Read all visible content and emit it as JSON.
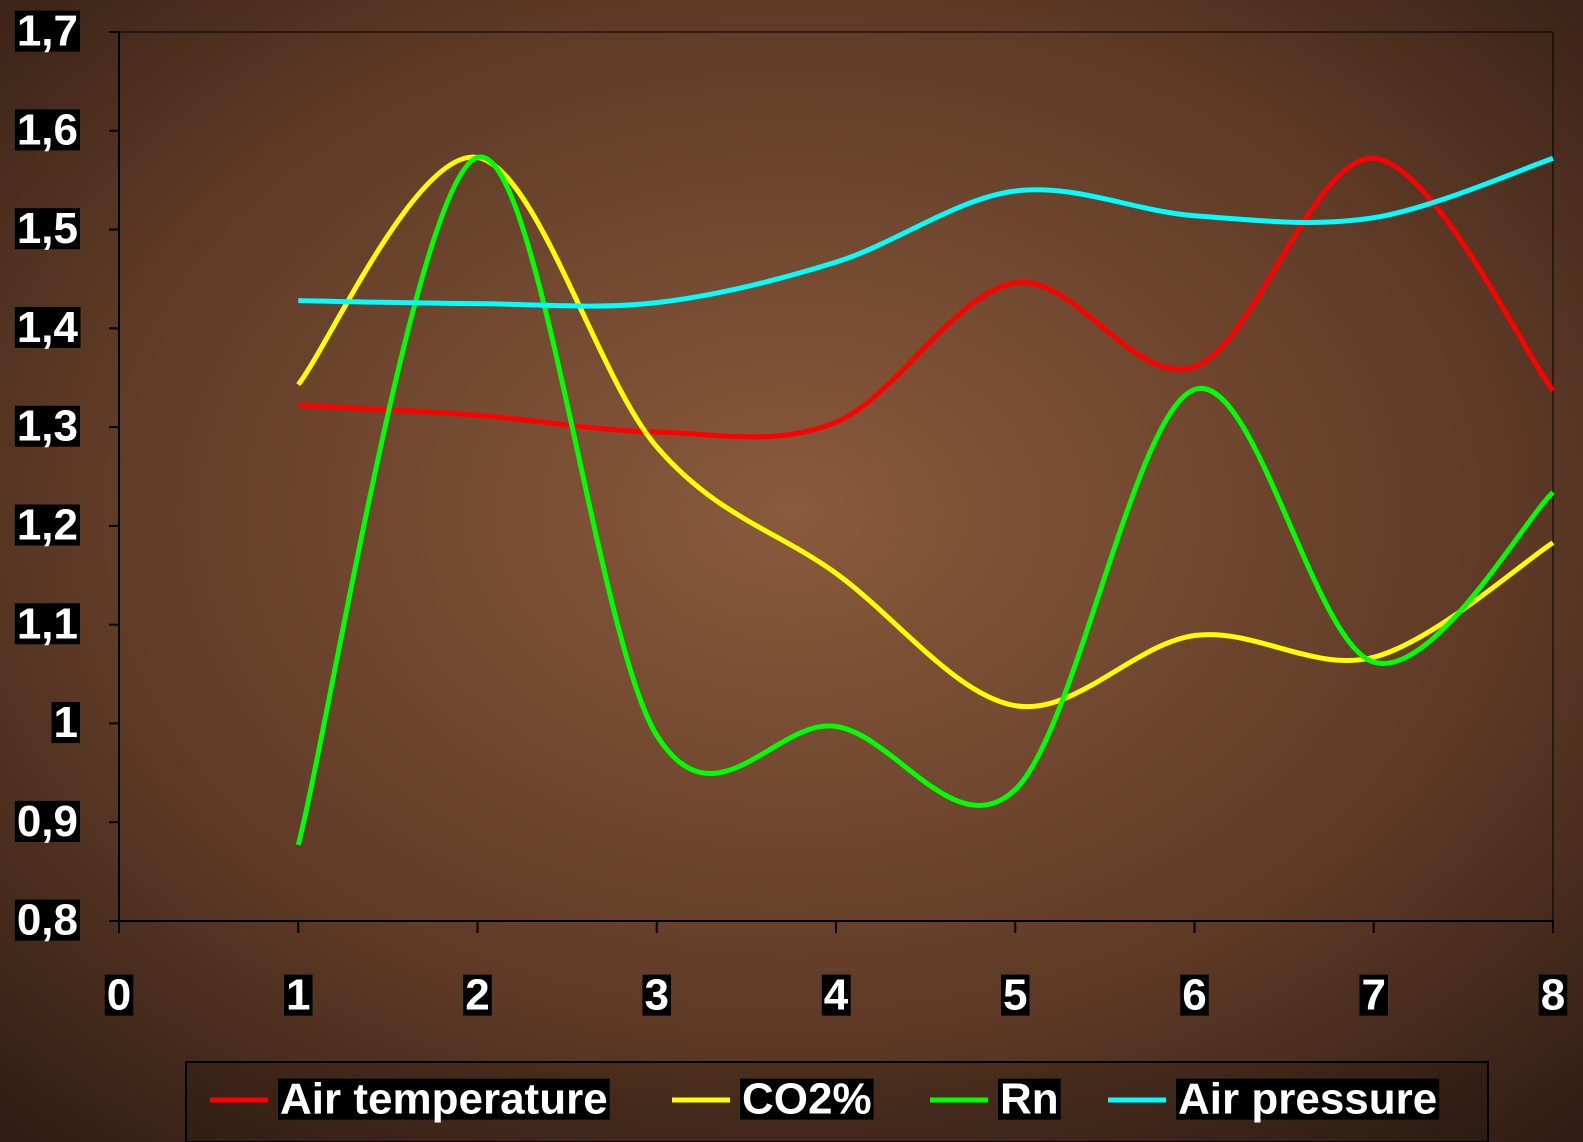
{
  "chart_data": {
    "type": "line",
    "x": [
      1,
      2,
      3,
      4,
      5,
      6,
      7,
      8
    ],
    "series": [
      {
        "name": "Air temperature",
        "color": "#ff0000",
        "values": [
          1.322,
          1.312,
          1.295,
          1.305,
          1.446,
          1.361,
          1.572,
          1.337
        ]
      },
      {
        "name": "CO2%",
        "color": "#ffff00",
        "values": [
          1.343,
          1.573,
          1.28,
          1.152,
          1.018,
          1.089,
          1.067,
          1.183
        ]
      },
      {
        "name": "Rn",
        "color": "#00ff00",
        "values": [
          0.877,
          1.573,
          0.988,
          0.997,
          0.933,
          1.338,
          1.062,
          1.234
        ]
      },
      {
        "name": "Air pressure",
        "color": "#00ffff",
        "values": [
          1.428,
          1.425,
          1.426,
          1.467,
          1.539,
          1.514,
          1.512,
          1.572
        ]
      }
    ],
    "xlim": [
      0,
      8
    ],
    "xticks": [
      0,
      1,
      2,
      3,
      4,
      5,
      6,
      7,
      8
    ],
    "ylim": [
      0.8,
      1.7
    ],
    "yticks": [
      {
        "value": 0.8,
        "label": "0,8"
      },
      {
        "value": 0.9,
        "label": "0,9"
      },
      1,
      {
        "value": 1.1,
        "label": "1,1"
      },
      {
        "value": 1.2,
        "label": "1,2"
      },
      {
        "value": 1.3,
        "label": "1,3"
      },
      {
        "value": 1.4,
        "label": "1,4"
      },
      {
        "value": 1.5,
        "label": "1,5"
      },
      {
        "value": 1.6,
        "label": "1,6"
      },
      {
        "value": 1.7,
        "label": "1,7"
      }
    ],
    "legend": "bottom"
  }
}
